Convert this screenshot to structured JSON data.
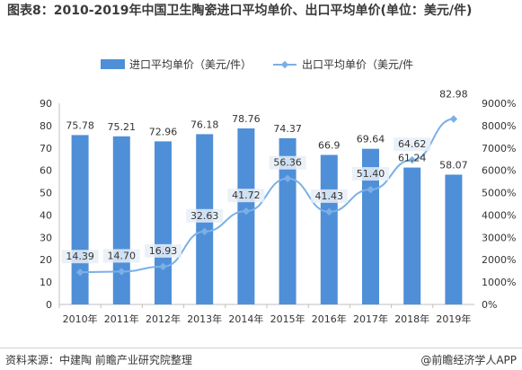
{
  "title": "图表8：2010-2019年中国卫生陶瓷进口平均单价、出口平均单价(单位：美元/件)",
  "source": "资料来源：中建陶 前瞻产业研究院整理",
  "brand": "@前瞻经济学人APP",
  "colors": {
    "bar": "#4f8fd8",
    "line": "#7ab0e6",
    "label_box": "#e6eef7"
  },
  "chart_data": {
    "type": "bar+line",
    "categories": [
      "2010年",
      "2011年",
      "2012年",
      "2013年",
      "2014年",
      "2015年",
      "2016年",
      "2017年",
      "2018年",
      "2019年"
    ],
    "series": [
      {
        "name": "进口平均单价（美元/件）",
        "type": "bar",
        "axis": "left",
        "values": [
          75.78,
          75.21,
          72.96,
          76.18,
          78.76,
          74.37,
          66.9,
          69.64,
          61.24,
          58.07
        ],
        "labels": [
          "75.78",
          "75.21",
          "72.96",
          "76.18",
          "78.76",
          "74.37",
          "66.9",
          "69.64",
          "61.24",
          "58.07"
        ]
      },
      {
        "name": "出口平均单价（美元/件",
        "type": "line",
        "axis": "right",
        "values": [
          14.39,
          14.7,
          16.93,
          32.63,
          41.72,
          56.36,
          41.43,
          51.4,
          64.62,
          82.98
        ],
        "labels": [
          "14.39",
          "14.70",
          "16.93",
          "32.63",
          "41.72",
          "56.36",
          "41.43",
          "51.40",
          "64.62",
          "82.98"
        ]
      }
    ],
    "left_axis": {
      "ticks": [
        "0",
        "10",
        "20",
        "30",
        "40",
        "50",
        "60",
        "70",
        "80",
        "90"
      ],
      "ylim": [
        0,
        90
      ]
    },
    "right_axis": {
      "ticks": [
        "0%",
        "1000%",
        "2000%",
        "3000%",
        "4000%",
        "5000%",
        "6000%",
        "7000%",
        "8000%",
        "9000%"
      ],
      "ylim": [
        0,
        9000
      ]
    },
    "legend_position": "top-center",
    "grid": false
  }
}
